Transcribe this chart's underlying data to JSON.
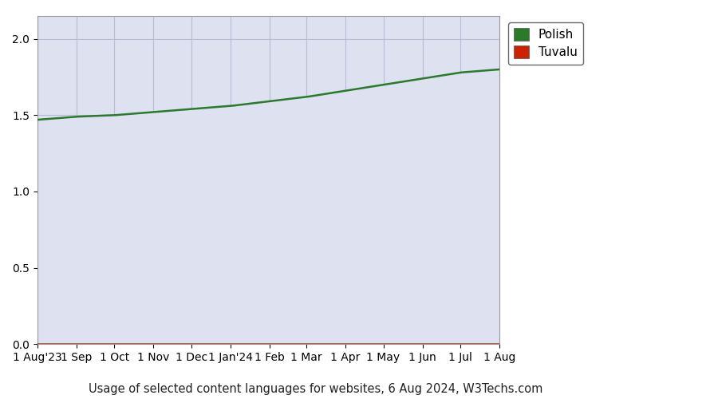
{
  "title": "Usage of selected content languages for websites, 6 Aug 2024, W3Techs.com",
  "plot_bg_color": "#dde1f0",
  "outer_bg_color": "#ffffff",
  "ylim": [
    0,
    2.15
  ],
  "yticks": [
    0,
    0.5,
    1,
    1.5,
    2
  ],
  "legend_labels": [
    "Polish",
    "Tuvalu"
  ],
  "legend_square_colors": [
    "#2a7a2a",
    "#cc2200"
  ],
  "key_months": [
    0,
    0.083,
    0.167,
    0.25,
    0.333,
    0.417,
    0.5,
    0.583,
    0.667,
    0.75,
    0.833,
    0.917,
    1.0
  ],
  "key_values": [
    1.47,
    1.49,
    1.5,
    1.52,
    1.54,
    1.56,
    1.59,
    1.62,
    1.66,
    1.7,
    1.74,
    1.78,
    1.8
  ],
  "polish_line_color": "#2a7a2a",
  "tuvalu_line_color": "#cc2200",
  "line_width": 1.8,
  "grid_color": "#b8bcd4",
  "tick_label_fontsize": 10,
  "title_fontsize": 10.5,
  "x_tick_labels": [
    "1 Aug'23",
    "1 Sep",
    "1 Oct",
    "1 Nov",
    "1 Dec",
    "1 Jan'24",
    "1 Feb",
    "1 Mar",
    "1 Apr",
    "1 May",
    "1 Jun",
    "1 Jul",
    "1 Aug"
  ]
}
